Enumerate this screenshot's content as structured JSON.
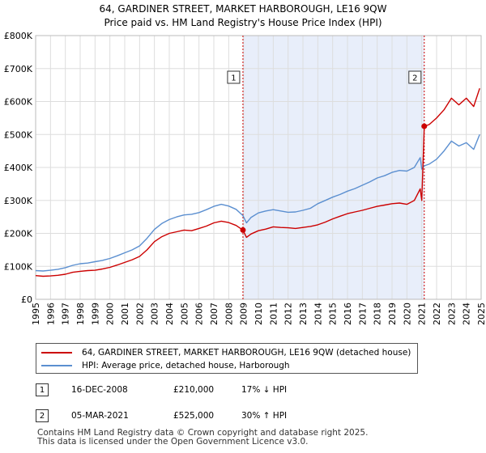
{
  "title_line1": "64, GARDINER STREET, MARKET HARBOROUGH, LE16 9QW",
  "title_line2": "Price paid vs. HM Land Registry's House Price Index (HPI)",
  "colors": {
    "property": "#cc0000",
    "hpi": "#5b8fd0",
    "shade": "#e8eefa",
    "marker_line": "#cc0000"
  },
  "chart_data": {
    "type": "line",
    "title": "64, GARDINER STREET, MARKET HARBOROUGH, LE16 9QW — Price paid vs. HM Land Registry's House Price Index (HPI)",
    "xlabel": "",
    "ylabel": "",
    "xlim": [
      1995.0,
      2025.0
    ],
    "ylim": [
      0,
      800000
    ],
    "y_ticks": [
      0,
      100000,
      200000,
      300000,
      400000,
      500000,
      600000,
      700000,
      800000
    ],
    "y_tick_labels": [
      "£0",
      "£100K",
      "£200K",
      "£300K",
      "£400K",
      "£500K",
      "£600K",
      "£700K",
      "£800K"
    ],
    "x_ticks": [
      1995,
      1996,
      1997,
      1998,
      1999,
      2000,
      2001,
      2002,
      2003,
      2004,
      2005,
      2006,
      2007,
      2008,
      2009,
      2010,
      2011,
      2012,
      2013,
      2014,
      2015,
      2016,
      2017,
      2018,
      2019,
      2020,
      2021,
      2022,
      2023,
      2024,
      2025
    ],
    "x_tick_labels": [
      "1995",
      "1996",
      "1997",
      "1998",
      "1999",
      "2000",
      "2001",
      "2002",
      "2003",
      "2004",
      "2005",
      "2006",
      "2007",
      "2008",
      "2009",
      "2010",
      "2011",
      "2012",
      "2013",
      "2014",
      "2015",
      "2016",
      "2017",
      "2018",
      "2019",
      "2020",
      "2021",
      "2022",
      "2023",
      "2024",
      "2025"
    ],
    "grid": true,
    "shaded_range": [
      2008.96,
      2021.17
    ],
    "series": [
      {
        "name": "64, GARDINER STREET, MARKET HARBOROUGH, LE16 9QW (detached house)",
        "color": "#cc0000",
        "x": [
          1995.0,
          1995.5,
          1996.0,
          1996.5,
          1997.0,
          1997.5,
          1998.0,
          1998.5,
          1999.0,
          1999.5,
          2000.0,
          2000.5,
          2001.0,
          2001.5,
          2002.0,
          2002.5,
          2003.0,
          2003.5,
          2004.0,
          2004.5,
          2005.0,
          2005.5,
          2006.0,
          2006.5,
          2007.0,
          2007.5,
          2008.0,
          2008.5,
          2008.96,
          2009.2,
          2009.5,
          2010.0,
          2010.5,
          2011.0,
          2011.5,
          2012.0,
          2012.5,
          2013.0,
          2013.5,
          2014.0,
          2014.5,
          2015.0,
          2015.5,
          2016.0,
          2016.5,
          2017.0,
          2017.5,
          2018.0,
          2018.5,
          2019.0,
          2019.5,
          2020.0,
          2020.5,
          2020.9,
          2021.0,
          2021.17,
          2021.5,
          2022.0,
          2022.5,
          2023.0,
          2023.5,
          2024.0,
          2024.5,
          2024.9
        ],
        "values": [
          72000,
          70000,
          71000,
          73000,
          76000,
          82000,
          85000,
          87000,
          88000,
          92000,
          97000,
          104000,
          112000,
          120000,
          130000,
          150000,
          175000,
          190000,
          200000,
          205000,
          210000,
          208000,
          215000,
          222000,
          232000,
          237000,
          233000,
          224000,
          210000,
          188000,
          198000,
          208000,
          213000,
          220000,
          218000,
          217000,
          215000,
          218000,
          221000,
          226000,
          234000,
          244000,
          252000,
          260000,
          265000,
          270000,
          276000,
          282000,
          286000,
          290000,
          292000,
          288000,
          300000,
          335000,
          300000,
          525000,
          530000,
          550000,
          575000,
          610000,
          590000,
          610000,
          585000,
          640000
        ]
      },
      {
        "name": "HPI: Average price, detached house, Harborough",
        "color": "#5b8fd0",
        "x": [
          1995.0,
          1995.5,
          1996.0,
          1996.5,
          1997.0,
          1997.5,
          1998.0,
          1998.5,
          1999.0,
          1999.5,
          2000.0,
          2000.5,
          2001.0,
          2001.5,
          2002.0,
          2002.5,
          2003.0,
          2003.5,
          2004.0,
          2004.5,
          2005.0,
          2005.5,
          2006.0,
          2006.5,
          2007.0,
          2007.5,
          2008.0,
          2008.5,
          2008.96,
          2009.2,
          2009.5,
          2010.0,
          2010.5,
          2011.0,
          2011.5,
          2012.0,
          2012.5,
          2013.0,
          2013.5,
          2014.0,
          2014.5,
          2015.0,
          2015.5,
          2016.0,
          2016.5,
          2017.0,
          2017.5,
          2018.0,
          2018.5,
          2019.0,
          2019.5,
          2020.0,
          2020.5,
          2020.9,
          2021.0,
          2021.17,
          2021.5,
          2022.0,
          2022.5,
          2023.0,
          2023.5,
          2024.0,
          2024.5,
          2024.9
        ],
        "values": [
          87000,
          86000,
          88000,
          91000,
          96000,
          103000,
          108000,
          110000,
          114000,
          118000,
          124000,
          132000,
          141000,
          150000,
          162000,
          185000,
          212000,
          230000,
          242000,
          250000,
          256000,
          258000,
          263000,
          272000,
          282000,
          288000,
          283000,
          273000,
          254000,
          232000,
          248000,
          262000,
          268000,
          272000,
          268000,
          264000,
          265000,
          270000,
          276000,
          290000,
          300000,
          310000,
          318000,
          328000,
          336000,
          346000,
          356000,
          368000,
          375000,
          385000,
          391000,
          389000,
          400000,
          430000,
          395000,
          405000,
          410000,
          425000,
          450000,
          480000,
          465000,
          475000,
          455000,
          500000
        ]
      }
    ],
    "sales": [
      {
        "label": "1",
        "x": 2008.96,
        "price": 210000
      },
      {
        "label": "2",
        "x": 2021.17,
        "price": 525000
      }
    ]
  },
  "legend": {
    "property_label": "64, GARDINER STREET, MARKET HARBOROUGH, LE16 9QW (detached house)",
    "hpi_label": "HPI: Average price, detached house, Harborough"
  },
  "sales_table": [
    {
      "label": "1",
      "date": "16-DEC-2008",
      "price": "£210,000",
      "hpi": "17% ↓ HPI"
    },
    {
      "label": "2",
      "date": "05-MAR-2021",
      "price": "£525,000",
      "hpi": "30% ↑ HPI"
    }
  ],
  "footer_line1": "Contains HM Land Registry data © Crown copyright and database right 2025.",
  "footer_line2": "This data is licensed under the Open Government Licence v3.0."
}
